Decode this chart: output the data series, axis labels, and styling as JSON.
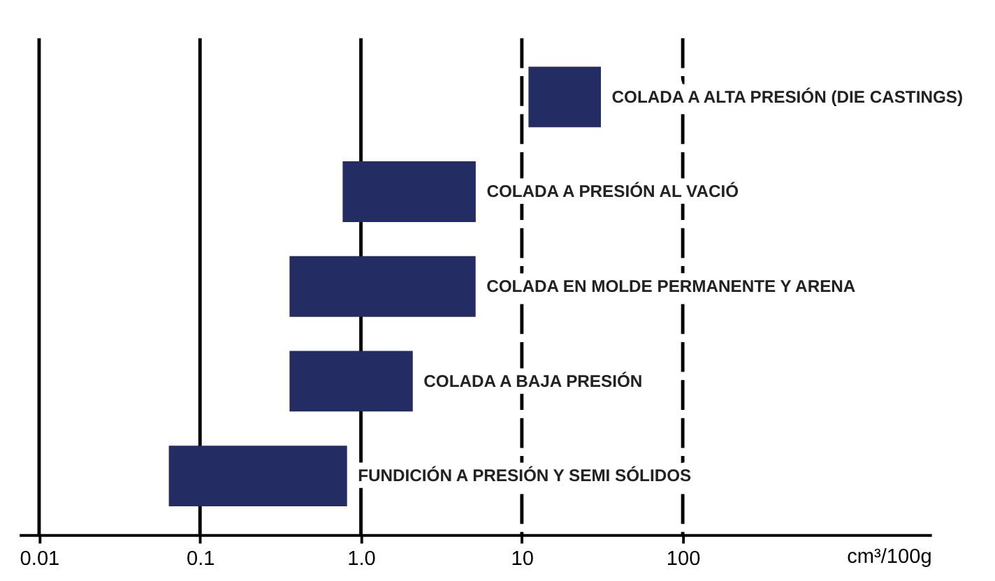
{
  "chart_data": {
    "type": "bar",
    "orientation": "horizontal",
    "categories": [
      "COLADA A ALTA PRESIÓN (DIE CASTINGS)",
      "COLADA A PRESIÓN AL VACIÓ",
      "COLADA EN MOLDE PERMANENTE Y ARENA",
      "COLADA A BAJA PRESIÓN",
      "FUNDICIÓN A PRESIÓN Y SEMI SÓLIDOS"
    ],
    "base": [
      11,
      0.77,
      0.36,
      0.36,
      0.064
    ],
    "values": [
      20,
      4.4,
      4.8,
      1.74,
      0.756
    ],
    "color": "#232c63",
    "xlabel": "cm³/100g",
    "log": "x",
    "xlim": [
      0.0075,
      3500
    ],
    "xticks": [
      0.01,
      0.1,
      {
        "value": 1,
        "label": "1.0"
      },
      10,
      100
    ],
    "tick_labels": "x",
    "grid": false,
    "ref_lines": [
      {
        "axis": "x",
        "value": 0.01,
        "line_style": "solid",
        "color": "#000000"
      },
      {
        "axis": "x",
        "value": 0.1,
        "line_style": "solid",
        "color": "#000000"
      },
      {
        "axis": "x",
        "value": 1,
        "line_style": "solid",
        "color": "#000000"
      },
      {
        "axis": "x",
        "value": 10,
        "line_style": "dashed",
        "color": "#000000"
      },
      {
        "axis": "x",
        "value": 100,
        "line_style": "dashed",
        "color": "#000000"
      }
    ]
  }
}
